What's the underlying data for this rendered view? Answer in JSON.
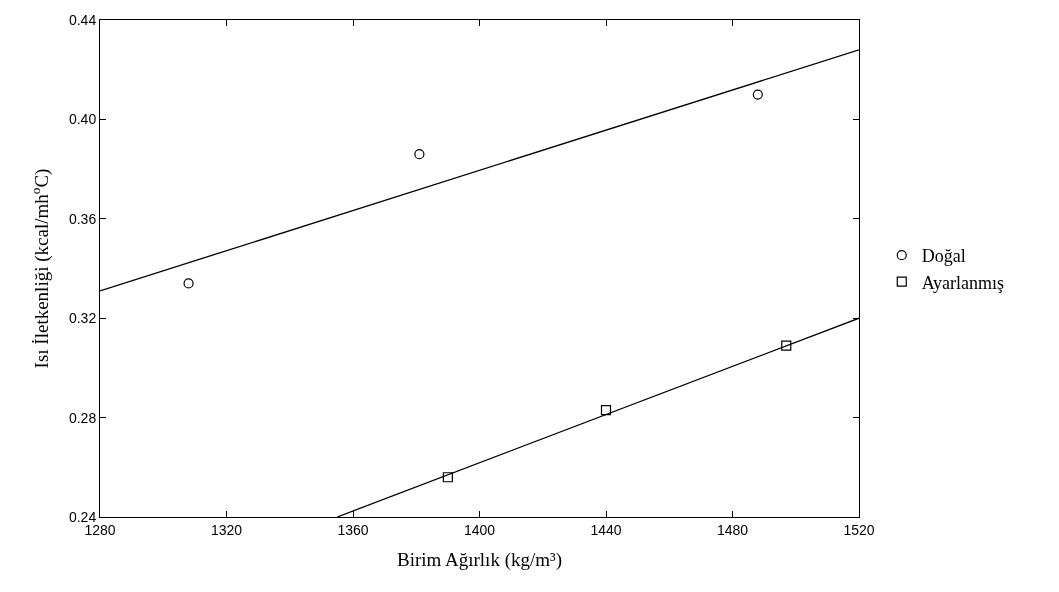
{
  "chart_data": {
    "type": "scatter",
    "xlabel": "Birim Ağırlık (kg/m³)",
    "ylabel": "Isı İletkenliği (kcal/mh$^{o}$C)",
    "xlim": [
      1280,
      1520
    ],
    "ylim": [
      0.24,
      0.44
    ],
    "xticks": [
      1280,
      1320,
      1360,
      1400,
      1440,
      1480,
      1520
    ],
    "yticks": [
      {
        "value": 0.24,
        "label": "0.24"
      },
      {
        "value": 0.28,
        "label": "0.28"
      },
      {
        "value": 0.32,
        "label": "0.32"
      },
      {
        "value": 0.36,
        "label": "0.36"
      },
      {
        "value": 0.4,
        "label": "0.40"
      },
      {
        "value": 0.44,
        "label": "0.44"
      }
    ],
    "grid": false,
    "legend": "right",
    "series": [
      {
        "name": "Doğal",
        "color": "#000000",
        "marker": "circle",
        "x": [
          1308,
          1381,
          1488
        ],
        "values": [
          0.334,
          0.386,
          0.41
        ]
      },
      {
        "name": "Ayarlanmış",
        "color": "#000000",
        "marker": "square",
        "x": [
          1390,
          1440,
          1497
        ],
        "values": [
          0.256,
          0.283,
          0.309
        ]
      },
      {
        "type": "line",
        "color": "#000000",
        "marker": "none",
        "line_style": "solid",
        "x": [
          1280,
          1520
        ],
        "values": [
          0.331,
          0.428
        ]
      },
      {
        "type": "line",
        "color": "#000000",
        "marker": "none",
        "line_style": "solid",
        "x": [
          1355,
          1520
        ],
        "values": [
          0.24,
          0.32
        ]
      }
    ]
  }
}
